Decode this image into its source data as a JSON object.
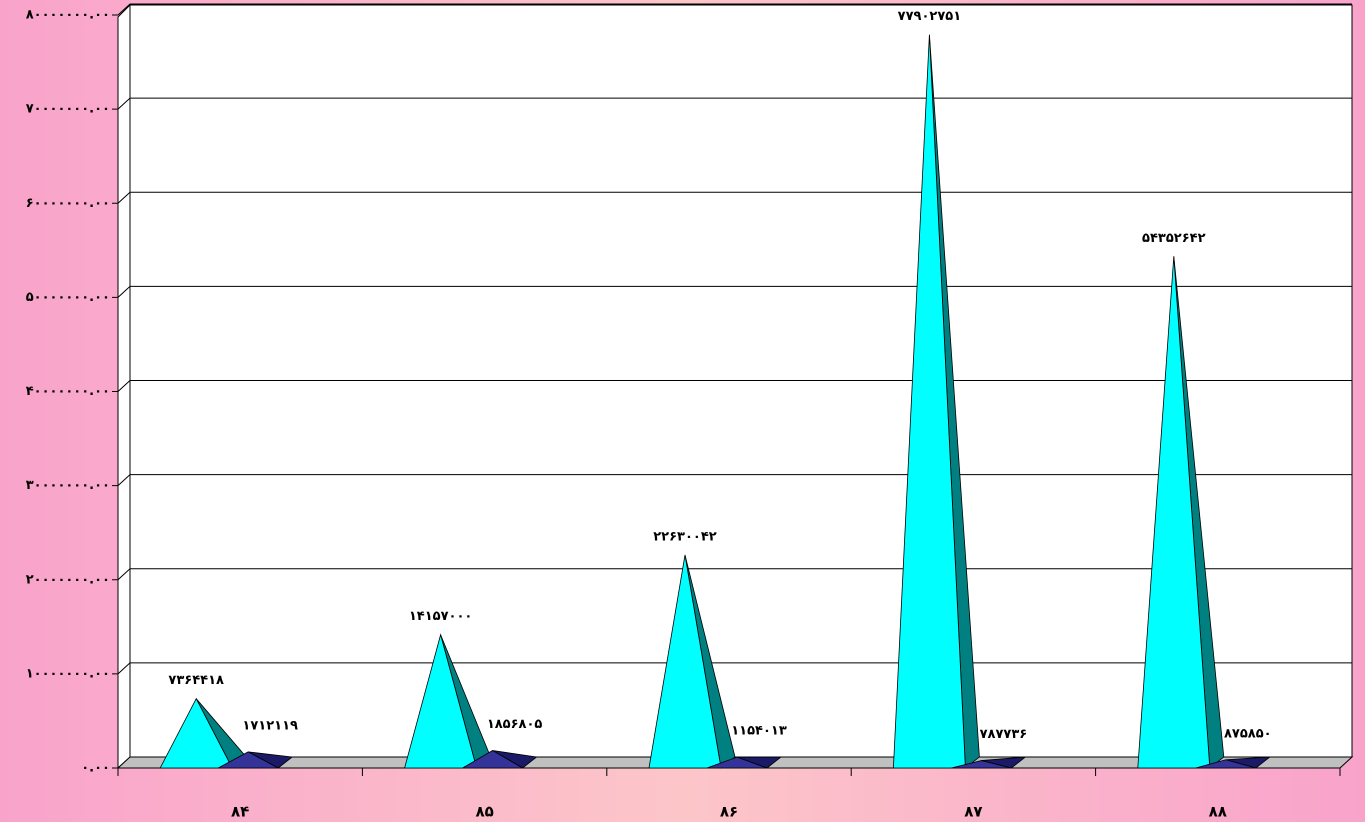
{
  "chart_data": {
    "type": "pyramid3d",
    "categories": [
      "۸۴",
      "۸۵",
      "۸۶",
      "۸۷",
      "۸۸"
    ],
    "series": [
      {
        "color": "#00ffff",
        "side_color": "#008080",
        "values": [
          7364418,
          14157000,
          22630042,
          77902751,
          54352642
        ],
        "value_labels": [
          "۷۳۶۴۴۱۸",
          "۱۴۱۵۷۰۰۰",
          "۲۲۶۳۰۰۴۲",
          "۷۷۹۰۲۷۵۱",
          "۵۴۳۵۲۶۴۲"
        ]
      },
      {
        "color": "#333399",
        "side_color": "#1a1a66",
        "values": [
          1712119,
          1856805,
          1154013,
          787736,
          875850
        ],
        "value_labels": [
          "۱۷۱۲۱۱۹",
          "۱۸۵۶۸۰۵",
          "۱۱۵۴۰۱۳",
          "۷۸۷۷۳۶",
          "۸۷۵۸۵۰"
        ]
      }
    ],
    "ylim": [
      0,
      80000000
    ],
    "yticks": [
      {
        "value": 0,
        "label": "۰.۰۰"
      },
      {
        "value": 10000000,
        "label": "۱۰۰۰۰۰۰۰.۰۰"
      },
      {
        "value": 20000000,
        "label": "۲۰۰۰۰۰۰۰.۰۰"
      },
      {
        "value": 30000000,
        "label": "۳۰۰۰۰۰۰۰.۰۰"
      },
      {
        "value": 40000000,
        "label": "۴۰۰۰۰۰۰۰.۰۰"
      },
      {
        "value": 50000000,
        "label": "۵۰۰۰۰۰۰۰.۰۰"
      },
      {
        "value": 60000000,
        "label": "۶۰۰۰۰۰۰۰.۰۰"
      },
      {
        "value": 70000000,
        "label": "۷۰۰۰۰۰۰۰.۰۰"
      },
      {
        "value": 80000000,
        "label": "۸۰۰۰۰۰۰۰.۰۰"
      }
    ],
    "grid": true
  }
}
